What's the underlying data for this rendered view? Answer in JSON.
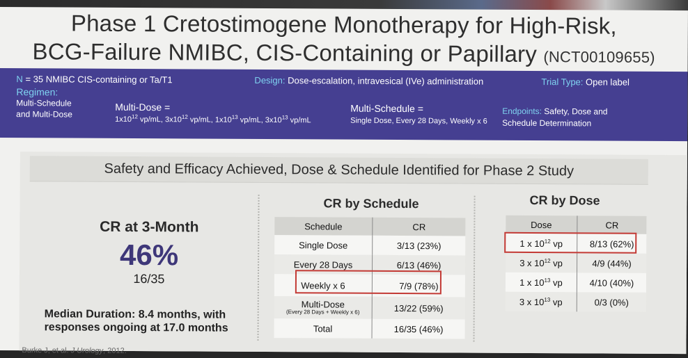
{
  "title": {
    "line1": "Phase 1 Cretostimogene Monotherapy for High-Risk,",
    "line2": "BCG-Failure NMIBC, CIS-Containing or Papillary",
    "nct": "(NCT00109655)"
  },
  "banner": {
    "n_label": "N",
    "n_value": "= 35 NMIBC CIS-containing or Ta/T1",
    "design_label": "Design:",
    "design_value": "Dose-escalation, intravesical (IVe) administration",
    "trial_label": "Trial Type:",
    "trial_value": "Open label",
    "regimen_label": "Regimen:",
    "regimen_line1": "Multi-Schedule",
    "regimen_line2": "and Multi-Dose",
    "multidose_label": "Multi-Dose =",
    "multidose_v1": "1x10",
    "multidose_e1": "12",
    "multidose_v2": " vp/mL, 3x10",
    "multidose_e2": "12",
    "multidose_v3": " vp/mL, 1x10",
    "multidose_e3": "13",
    "multidose_v4": " vp/mL, 3x10",
    "multidose_e4": "13",
    "multidose_v5": " vp/mL",
    "multischedule_label": "Multi-Schedule =",
    "multischedule_value": "Single Dose, Every 28 Days, Weekly x 6",
    "endpoints_label": "Endpoints:",
    "endpoints_line1": "Safety, Dose and",
    "endpoints_line2": "Schedule Determination"
  },
  "section_title": "Safety and Efficacy Achieved, Dose & Schedule Identified for Phase 2 Study",
  "cr3": {
    "label": "CR at 3-Month",
    "percent": "46%",
    "fraction": "16/35",
    "median_line1": "Median Duration: 8.4 months, with",
    "median_line2": "responses ongoing at 17.0 months"
  },
  "schedule_table": {
    "title": "CR by Schedule",
    "headers": [
      "Schedule",
      "CR"
    ],
    "rows": [
      {
        "label": "Single Dose",
        "cr": "3/13 (23%)"
      },
      {
        "label": "Every 28 Days",
        "cr": "6/13 (46%)"
      },
      {
        "label": "Weekly x 6",
        "cr": "7/9 (78%)",
        "highlight": true
      },
      {
        "label": "Multi-Dose",
        "sub": "(Every 28 Days + Weekly x 6)",
        "cr": "13/22 (59%)"
      },
      {
        "label": "Total",
        "cr": "16/35 (46%)"
      }
    ]
  },
  "dose_table": {
    "title": "CR by Dose",
    "headers": [
      "Dose",
      "CR"
    ],
    "rows": [
      {
        "base": "1 x 10",
        "exp": "12",
        "unit": " vp",
        "cr": "8/13 (62%)",
        "highlight": true
      },
      {
        "base": "3 x 10",
        "exp": "12",
        "unit": " vp",
        "cr": "4/9 (44%)"
      },
      {
        "base": "1 x 10",
        "exp": "13",
        "unit": " vp",
        "cr": "4/10 (40%)"
      },
      {
        "base": "3 x 10",
        "exp": "13",
        "unit": " vp",
        "cr": "0/3 (0%)"
      }
    ]
  },
  "citation": {
    "author": "Burke J, et al. ",
    "journal": "J Urology",
    "year": ", 2012."
  },
  "colors": {
    "banner_bg": "#453f91",
    "accent": "#7fd3f0",
    "highlight_border": "#c33a35",
    "percent_color": "#3e3779"
  }
}
